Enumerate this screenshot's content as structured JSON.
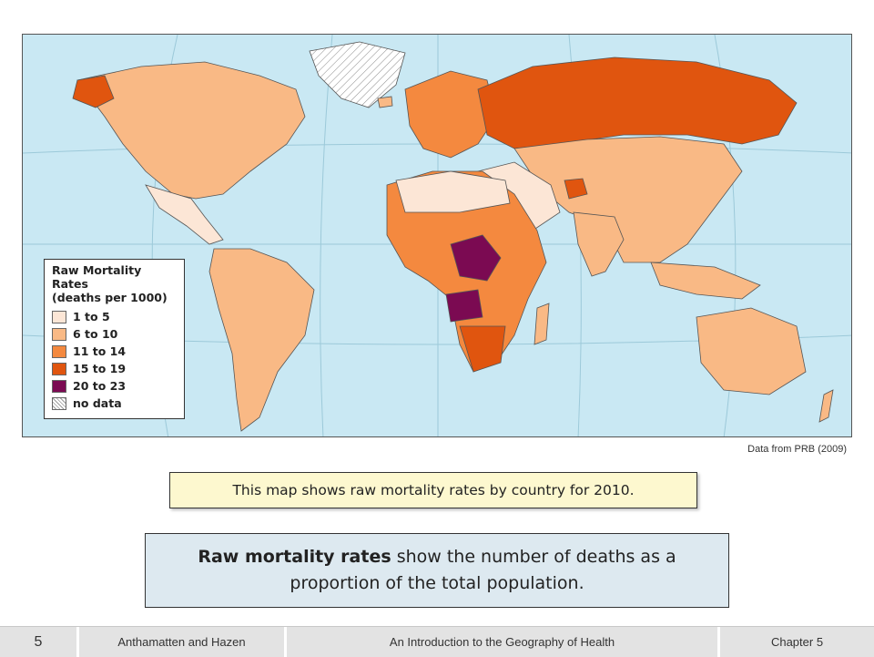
{
  "map": {
    "legend": {
      "title": "Raw Mortality Rates",
      "subtitle": "(deaths per 1000)",
      "items": [
        {
          "label": "1 to 5",
          "color": "#fce6d6"
        },
        {
          "label": "6 to 10",
          "color": "#f9b985"
        },
        {
          "label": "11 to 14",
          "color": "#f4893f"
        },
        {
          "label": "15 to 19",
          "color": "#e0550f"
        },
        {
          "label": "20 to 23",
          "color": "#7b0a52"
        },
        {
          "label": "no data",
          "color": "hatched"
        }
      ]
    },
    "colors": {
      "ocean": "#c9e8f3",
      "rate_1_5": "#fce6d6",
      "rate_6_10": "#f9b985",
      "rate_11_14": "#f4893f",
      "rate_15_19": "#e0550f",
      "rate_20_23": "#7b0a52"
    }
  },
  "source": "Data from PRB (2009)",
  "caption": "This map shows raw mortality rates by country for 2010.",
  "definition": {
    "term": "Raw mortality rates",
    "text": " show the number of deaths as a proportion of the total population."
  },
  "footer": {
    "slide_number": "5",
    "authors": "Anthamatten and Hazen",
    "book": "An Introduction to the Geography of Health",
    "chapter": "Chapter 5"
  }
}
